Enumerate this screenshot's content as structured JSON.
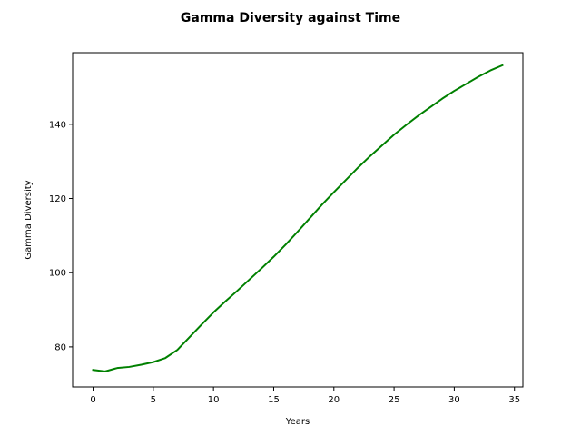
{
  "chart_data": {
    "type": "line",
    "title": "Gamma Diversity against Time",
    "xlabel": "Years",
    "ylabel": "Gamma Diversity",
    "xlim": [
      -1.7,
      35.7
    ],
    "ylim": [
      69.2,
      159.3
    ],
    "xticks": [
      0,
      5,
      10,
      15,
      20,
      25,
      30,
      35
    ],
    "yticks": [
      80,
      100,
      120,
      140
    ],
    "grid": false,
    "series": [
      {
        "color": "#008000",
        "x": [
          0,
          1,
          2,
          3,
          4,
          5,
          6,
          7,
          8,
          9,
          10,
          11,
          12,
          13,
          14,
          15,
          16,
          17,
          18,
          19,
          20,
          21,
          22,
          23,
          24,
          25,
          26,
          27,
          28,
          29,
          30,
          31,
          32,
          33,
          34
        ],
        "y": [
          73.8,
          73.4,
          74.3,
          74.6,
          75.2,
          75.9,
          77.0,
          79.2,
          82.6,
          86.0,
          89.3,
          92.3,
          95.2,
          98.2,
          101.2,
          104.3,
          107.6,
          111.1,
          114.7,
          118.3,
          121.7,
          125.0,
          128.3,
          131.4,
          134.3,
          137.2,
          139.8,
          142.3,
          144.6,
          146.9,
          149.0,
          150.9,
          152.8,
          154.5,
          155.9
        ]
      }
    ]
  }
}
